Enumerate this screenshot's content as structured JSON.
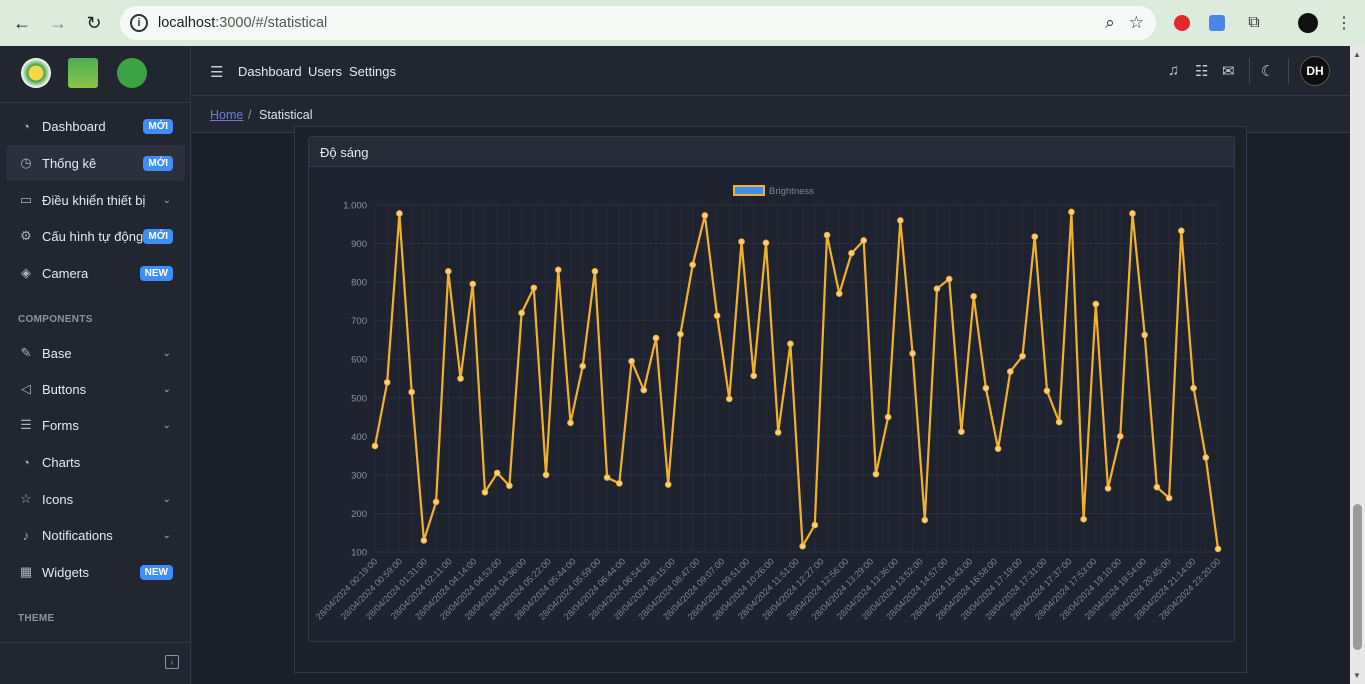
{
  "browser": {
    "url_host": "localhost",
    "url_path": ":3000/#/statistical"
  },
  "sidebar": {
    "items": [
      {
        "label": "Dashboard",
        "badge": "MỚI"
      },
      {
        "label": "Thống kê",
        "badge": "MỚI"
      },
      {
        "label": "Điều khiển thiết bị",
        "badge": ""
      },
      {
        "label": "Cấu hình tự động",
        "badge": "MỚI"
      },
      {
        "label": "Camera",
        "badge": "NEW"
      }
    ],
    "components_title": "COMPONENTS",
    "components": [
      {
        "label": "Base"
      },
      {
        "label": "Buttons"
      },
      {
        "label": "Forms"
      },
      {
        "label": "Charts"
      },
      {
        "label": "Icons"
      },
      {
        "label": "Notifications"
      },
      {
        "label": "Widgets",
        "badge": "NEW"
      }
    ],
    "theme_title": "THEME"
  },
  "header": {
    "links": [
      "Dashboard",
      "Users",
      "Settings"
    ],
    "avatar_text": "DH"
  },
  "breadcrumb": {
    "home": "Home",
    "separator": "/",
    "current": "Statistical"
  },
  "card": {
    "title": "Độ sáng"
  },
  "chart_data": {
    "type": "line",
    "legend": "Brightness",
    "legend_position": "top",
    "color": "#f2b12d",
    "ylim": [
      100,
      1000
    ],
    "yticks": [
      "100",
      "200",
      "300",
      "400",
      "500",
      "600",
      "700",
      "800",
      "900",
      "1.000"
    ],
    "xtick_labels": [
      "28/04/2024 00:19:00",
      "28/04/2024 00:59:00",
      "28/04/2024 01:31:00",
      "28/04/2024 02:11:00",
      "28/04/2024 04:14:00",
      "28/04/2024 04:53:00",
      "28/04/2024 04:36:00",
      "28/04/2024 05:22:00",
      "28/04/2024 05:44:00",
      "28/04/2024 05:59:00",
      "28/04/2024 06:44:00",
      "28/04/2024 06:54:00",
      "28/04/2024 08:15:00",
      "28/04/2024 08:47:00",
      "28/04/2024 09:07:00",
      "28/04/2024 09:51:00",
      "28/04/2024 10:26:00",
      "28/04/2024 11:51:00",
      "28/04/2024 12:27:00",
      "28/04/2024 12:56:00",
      "28/04/2024 13:29:00",
      "28/04/2024 13:36:00",
      "28/04/2024 13:52:00",
      "28/04/2024 14:57:00",
      "28/04/2024 15:43:00",
      "28/04/2024 16:58:00",
      "28/04/2024 17:19:00",
      "28/04/2024 17:31:00",
      "28/04/2024 17:37:00",
      "28/04/2024 17:53:00",
      "28/04/2024 19:10:00",
      "28/04/2024 19:54:00",
      "28/04/2024 20:45:00",
      "28/04/2024 21:14:00",
      "28/04/2024 23:20:00"
    ],
    "values": [
      375,
      540,
      978,
      515,
      130,
      230,
      828,
      550,
      795,
      255,
      305,
      272,
      720,
      785,
      300,
      832,
      435,
      582,
      828,
      293,
      278,
      595,
      520,
      655,
      275,
      665,
      845,
      973,
      713,
      497,
      905,
      557,
      902,
      410,
      640,
      115,
      170,
      922,
      770,
      875,
      908,
      302,
      450,
      960,
      615,
      183,
      783,
      808,
      412,
      763,
      525,
      368,
      568,
      608,
      918,
      518,
      437,
      982,
      185,
      743,
      265,
      400,
      978,
      663,
      268,
      240,
      933,
      525,
      345,
      108
    ]
  }
}
